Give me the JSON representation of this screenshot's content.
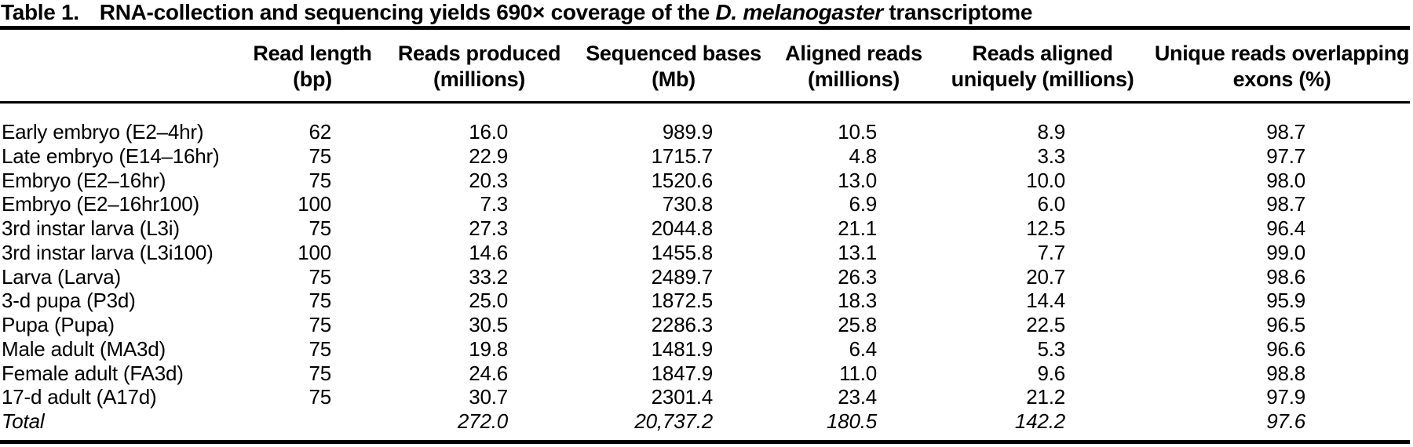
{
  "title": {
    "label": "Table 1.",
    "text_before_species": "RNA-collection and sequencing yields 690× coverage of the ",
    "species": "D. melanogaster",
    "text_after_species": " transcriptome"
  },
  "table": {
    "columns": [
      {
        "line1": "Read length",
        "line2": "(bp)"
      },
      {
        "line1": "Reads produced",
        "line2": "(millions)"
      },
      {
        "line1": "Sequenced bases",
        "line2": "(Mb)"
      },
      {
        "line1": "Aligned reads",
        "line2": "(millions)"
      },
      {
        "line1": "Reads aligned",
        "line2": "uniquely (millions)"
      },
      {
        "line1": "Unique reads overlapping",
        "line2": "exons (%)"
      }
    ],
    "rows": [
      {
        "sample": "Early embryo (E2–4hr)",
        "values": [
          "62",
          "16.0",
          "989.9",
          "10.5",
          "8.9",
          "98.7"
        ]
      },
      {
        "sample": "Late embryo (E14–16hr)",
        "values": [
          "75",
          "22.9",
          "1715.7",
          "4.8",
          "3.3",
          "97.7"
        ]
      },
      {
        "sample": "Embryo (E2–16hr)",
        "values": [
          "75",
          "20.3",
          "1520.6",
          "13.0",
          "10.0",
          "98.0"
        ]
      },
      {
        "sample": "Embryo (E2–16hr100)",
        "values": [
          "100",
          "7.3",
          "730.8",
          "6.9",
          "6.0",
          "98.7"
        ]
      },
      {
        "sample": "3rd instar larva (L3i)",
        "values": [
          "75",
          "27.3",
          "2044.8",
          "21.1",
          "12.5",
          "96.4"
        ]
      },
      {
        "sample": "3rd instar larva (L3i100)",
        "values": [
          "100",
          "14.6",
          "1455.8",
          "13.1",
          "7.7",
          "99.0"
        ]
      },
      {
        "sample": "Larva (Larva)",
        "values": [
          "75",
          "33.2",
          "2489.7",
          "26.3",
          "20.7",
          "98.6"
        ]
      },
      {
        "sample": "3-d pupa (P3d)",
        "values": [
          "75",
          "25.0",
          "1872.5",
          "18.3",
          "14.4",
          "95.9"
        ]
      },
      {
        "sample": "Pupa (Pupa)",
        "values": [
          "75",
          "30.5",
          "2286.3",
          "25.8",
          "22.5",
          "96.5"
        ]
      },
      {
        "sample": "Male adult (MA3d)",
        "values": [
          "75",
          "19.8",
          "1481.9",
          "6.4",
          "5.3",
          "96.6"
        ]
      },
      {
        "sample": "Female adult (FA3d)",
        "values": [
          "75",
          "24.6",
          "1847.9",
          "11.0",
          "9.6",
          "98.8"
        ]
      },
      {
        "sample": "17-d adult (A17d)",
        "values": [
          "75",
          "30.7",
          "2301.4",
          "23.4",
          "21.2",
          "97.9"
        ]
      }
    ],
    "total_row": {
      "sample": "Total",
      "values": [
        "",
        "272.0",
        "20,737.2",
        "180.5",
        "142.2",
        "97.6"
      ]
    }
  },
  "chart_data": {
    "type": "table",
    "title": "Table 1. RNA-collection and sequencing yields 690× coverage of the D. melanogaster transcriptome",
    "columns": [
      "Sample",
      "Read length (bp)",
      "Reads produced (millions)",
      "Sequenced bases (Mb)",
      "Aligned reads (millions)",
      "Reads aligned uniquely (millions)",
      "Unique reads overlapping exons (%)"
    ],
    "rows": [
      [
        "Early embryo (E2–4hr)",
        62,
        16.0,
        989.9,
        10.5,
        8.9,
        98.7
      ],
      [
        "Late embryo (E14–16hr)",
        75,
        22.9,
        1715.7,
        4.8,
        3.3,
        97.7
      ],
      [
        "Embryo (E2–16hr)",
        75,
        20.3,
        1520.6,
        13.0,
        10.0,
        98.0
      ],
      [
        "Embryo (E2–16hr100)",
        100,
        7.3,
        730.8,
        6.9,
        6.0,
        98.7
      ],
      [
        "3rd instar larva (L3i)",
        75,
        27.3,
        2044.8,
        21.1,
        12.5,
        96.4
      ],
      [
        "3rd instar larva (L3i100)",
        100,
        14.6,
        1455.8,
        13.1,
        7.7,
        99.0
      ],
      [
        "Larva (Larva)",
        75,
        33.2,
        2489.7,
        26.3,
        20.7,
        98.6
      ],
      [
        "3-d pupa (P3d)",
        75,
        25.0,
        1872.5,
        18.3,
        14.4,
        95.9
      ],
      [
        "Pupa (Pupa)",
        75,
        30.5,
        2286.3,
        25.8,
        22.5,
        96.5
      ],
      [
        "Male adult (MA3d)",
        75,
        19.8,
        1481.9,
        6.4,
        5.3,
        96.6
      ],
      [
        "Female adult (FA3d)",
        75,
        24.6,
        1847.9,
        11.0,
        9.6,
        98.8
      ],
      [
        "17-d adult (A17d)",
        75,
        30.7,
        2301.4,
        23.4,
        21.2,
        97.9
      ],
      [
        "Total",
        null,
        272.0,
        20737.2,
        180.5,
        142.2,
        97.6
      ]
    ]
  }
}
